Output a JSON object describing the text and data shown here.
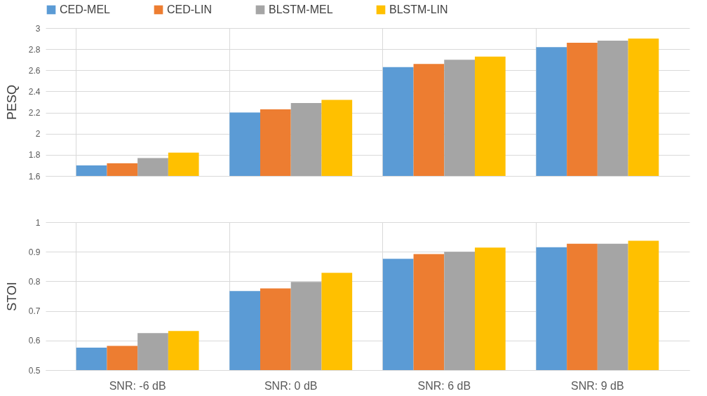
{
  "chart_data": [
    {
      "type": "bar",
      "ylabel": "PESQ",
      "categories": [
        null,
        null,
        null,
        null
      ],
      "series": [
        {
          "name": "CED-MEL",
          "color": "#5b9bd5",
          "values": [
            1.7,
            2.2,
            2.63,
            2.82
          ]
        },
        {
          "name": "CED-LIN",
          "color": "#ed7d31",
          "values": [
            1.72,
            2.23,
            2.66,
            2.86
          ]
        },
        {
          "name": "BLSTM-MEL",
          "color": "#a5a5a5",
          "values": [
            1.77,
            2.29,
            2.7,
            2.88
          ]
        },
        {
          "name": "BLSTM-LIN",
          "color": "#ffc000",
          "values": [
            1.82,
            2.32,
            2.73,
            2.9
          ]
        }
      ],
      "ylim": [
        1.6,
        3
      ],
      "yticks": [
        1.6,
        1.8,
        2,
        2.2,
        2.4,
        2.6,
        2.8,
        3
      ],
      "grid": true,
      "legend": "top"
    },
    {
      "type": "bar",
      "ylabel": "STOI",
      "categories": [
        "SNR: -6 dB",
        "SNR: 0 dB",
        "SNR: 6 dB",
        "SNR: 9 dB"
      ],
      "series": [
        {
          "name": "CED-MEL",
          "color": "#5b9bd5",
          "values": [
            0.576,
            0.767,
            0.876,
            0.915
          ]
        },
        {
          "name": "CED-LIN",
          "color": "#ed7d31",
          "values": [
            0.582,
            0.776,
            0.892,
            0.927
          ]
        },
        {
          "name": "BLSTM-MEL",
          "color": "#a5a5a5",
          "values": [
            0.625,
            0.798,
            0.9,
            0.927
          ]
        },
        {
          "name": "BLSTM-LIN",
          "color": "#ffc000",
          "values": [
            0.632,
            0.829,
            0.914,
            0.937
          ]
        }
      ],
      "ylim": [
        0.5,
        1
      ],
      "yticks": [
        0.5,
        0.6,
        0.7,
        0.8,
        0.9,
        1
      ],
      "grid": true
    }
  ]
}
